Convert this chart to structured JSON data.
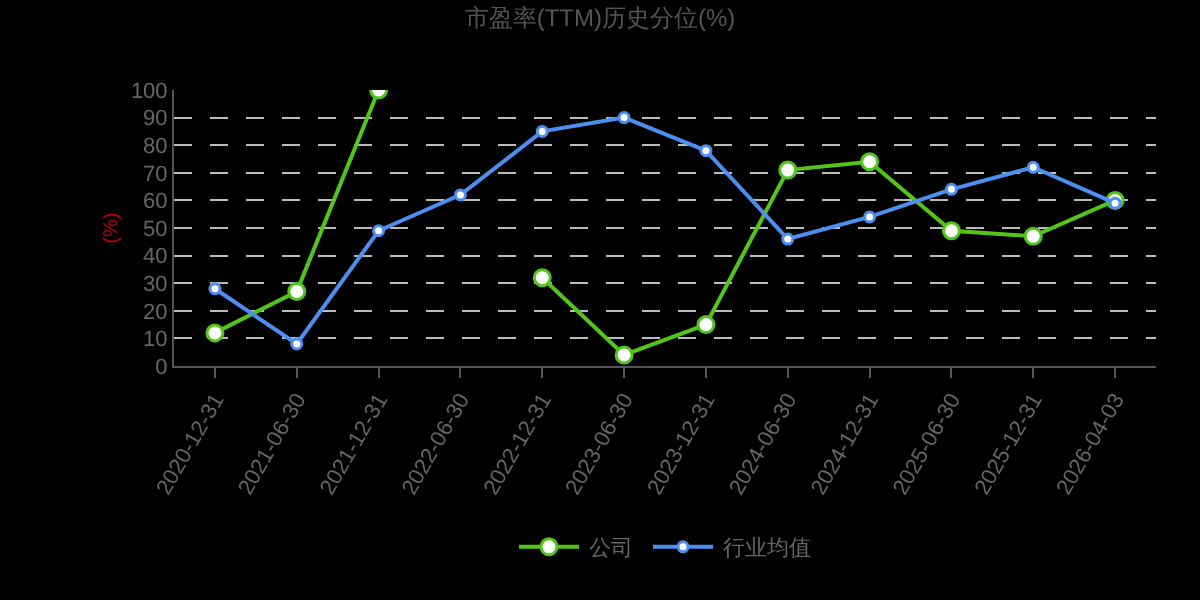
{
  "chart_data": {
    "type": "line",
    "title": "市盈率(TTM)历史分位(%)",
    "ylabel": "(%)",
    "categories": [
      "2020-12-31",
      "2021-06-30",
      "2021-12-31",
      "2022-06-30",
      "2022-12-31",
      "2023-06-30",
      "2023-12-31",
      "2024-06-30",
      "2024-12-31",
      "2025-06-30",
      "2025-12-31",
      "2026-04-03"
    ],
    "series": [
      {
        "name": "公司",
        "color": "#52c41a",
        "values": [
          12,
          27,
          100,
          null,
          32,
          4,
          15,
          71,
          74,
          49,
          47,
          60
        ]
      },
      {
        "name": "行业均值",
        "color": "#4d8ff0",
        "values": [
          28,
          8,
          49,
          62,
          85,
          90,
          78,
          46,
          54,
          64,
          72,
          59
        ]
      }
    ],
    "ylim": [
      0,
      100
    ],
    "yticks": [
      0,
      10,
      20,
      30,
      40,
      50,
      60,
      70,
      80,
      90,
      100
    ],
    "grid": "y",
    "legend": "bottom",
    "marker": "circle",
    "line_style": "solid"
  }
}
